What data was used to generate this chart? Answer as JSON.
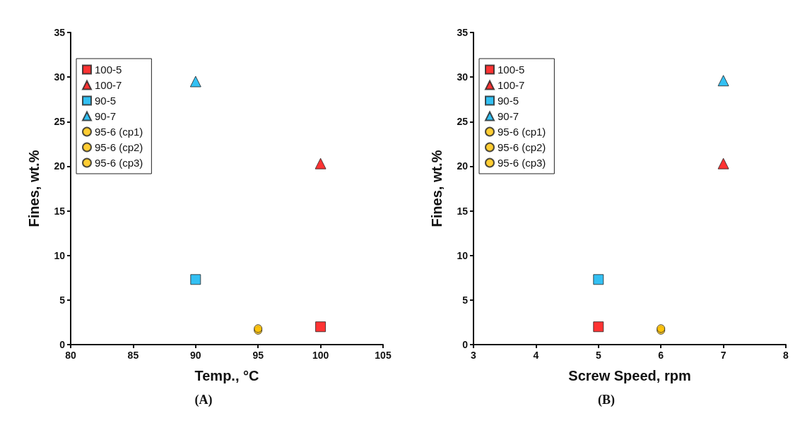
{
  "chart_data": [
    {
      "type": "scatter",
      "xlabel": "Temp., °C",
      "ylabel": "Fines, wt.%",
      "annotations": [
        "(A)"
      ],
      "xlim": [
        80,
        105
      ],
      "xticks": [
        80,
        85,
        90,
        95,
        100,
        105
      ],
      "ylim": [
        0,
        35
      ],
      "yticks": [
        0,
        5,
        10,
        15,
        20,
        25,
        30,
        35
      ],
      "grid": false,
      "legend": "top left",
      "series": [
        {
          "name": "100-5",
          "color": "#ff0000",
          "marker": "square",
          "x": [
            100
          ],
          "values": [
            2.0
          ]
        },
        {
          "name": "100-7",
          "color": "#ff0000",
          "marker": "triangle",
          "x": [
            100
          ],
          "values": [
            20.3
          ]
        },
        {
          "name": "90-5",
          "color": "#00b0f0",
          "marker": "square",
          "x": [
            90
          ],
          "values": [
            7.3
          ]
        },
        {
          "name": "90-7",
          "color": "#00b0f0",
          "marker": "triangle",
          "x": [
            90
          ],
          "values": [
            29.5
          ]
        },
        {
          "name": "95-6 (cp1)",
          "color": "#ffc000",
          "marker": "circle",
          "x": [
            95
          ],
          "values": [
            1.6
          ]
        },
        {
          "name": "95-6 (cp2)",
          "color": "#ffc000",
          "marker": "circle",
          "x": [
            null
          ],
          "values": [
            null
          ]
        },
        {
          "name": "95-6 (cp3)",
          "color": "#ffc000",
          "marker": "circle",
          "x": [
            95
          ],
          "values": [
            1.8
          ]
        }
      ]
    },
    {
      "type": "scatter",
      "xlabel": "Screw Speed, rpm",
      "ylabel": "Fines, wt.%",
      "annotations": [
        "(B)"
      ],
      "xlim": [
        3,
        8
      ],
      "xticks": [
        3,
        4,
        5,
        6,
        7,
        8
      ],
      "ylim": [
        0,
        35
      ],
      "yticks": [
        0,
        5,
        10,
        15,
        20,
        25,
        30,
        35
      ],
      "grid": false,
      "legend": "top left",
      "series": [
        {
          "name": "100-5",
          "color": "#ff0000",
          "marker": "square",
          "x": [
            5
          ],
          "values": [
            2.0
          ]
        },
        {
          "name": "100-7",
          "color": "#ff0000",
          "marker": "triangle",
          "x": [
            7
          ],
          "values": [
            20.3
          ]
        },
        {
          "name": "90-5",
          "color": "#00b0f0",
          "marker": "square",
          "x": [
            5
          ],
          "values": [
            7.3
          ]
        },
        {
          "name": "90-7",
          "color": "#00b0f0",
          "marker": "triangle",
          "x": [
            7
          ],
          "values": [
            29.6
          ]
        },
        {
          "name": "95-6 (cp1)",
          "color": "#ffc000",
          "marker": "circle",
          "x": [
            6
          ],
          "values": [
            1.6
          ]
        },
        {
          "name": "95-6 (cp2)",
          "color": "#ffc000",
          "marker": "circle",
          "x": [
            null
          ],
          "values": [
            null
          ]
        },
        {
          "name": "95-6 (cp3)",
          "color": "#ffc000",
          "marker": "circle",
          "x": [
            6
          ],
          "values": [
            1.8
          ]
        }
      ]
    }
  ]
}
